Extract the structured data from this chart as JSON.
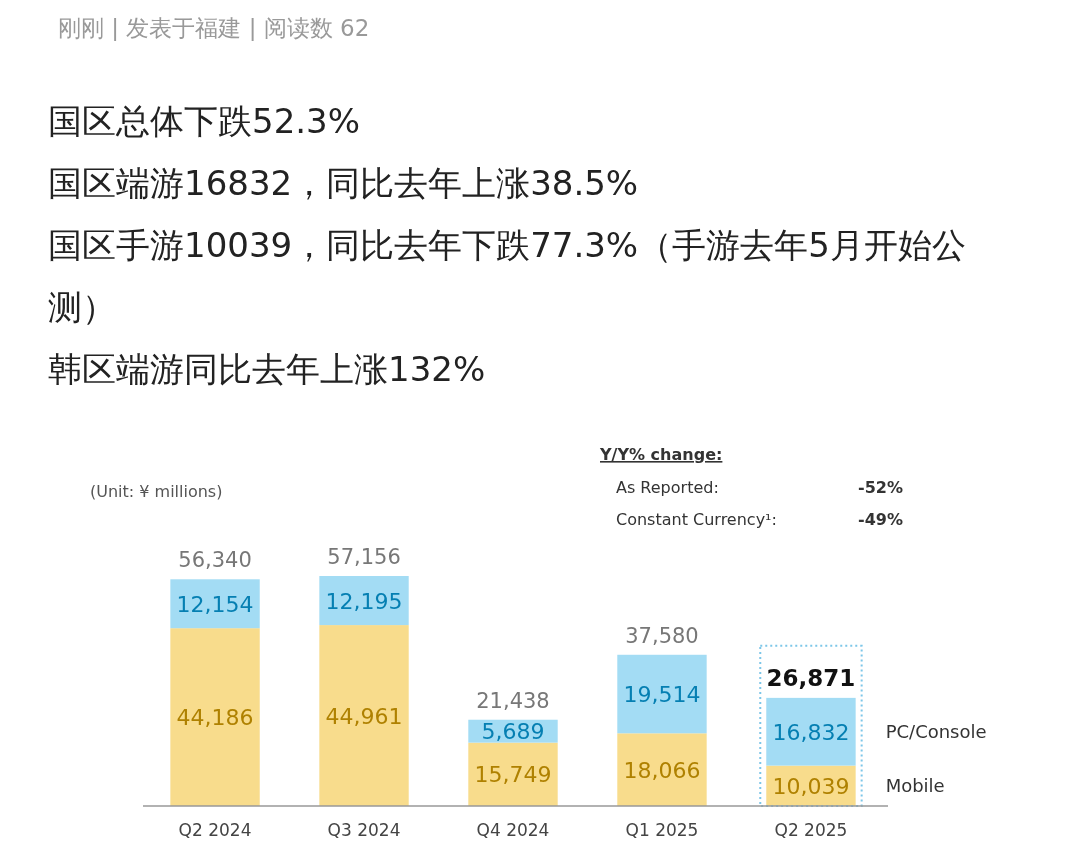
{
  "chart_data": {
    "type": "bar",
    "title": "国区总体下跌52.3%",
    "ylabel": "(Unit: ¥ millions)",
    "annotations": [
      "刚刚 | 发表于福建 | 阅读数 62",
      "国区端游16832，同比去年上涨38.5%",
      "国区手游10039，同比去年下跌77.3%（手游去年5月开始公测）",
      "韩区端游同比去年上涨132%",
      "Y/Y% change:",
      "As Reported:",
      "-52%",
      "Constant Currency¹:",
      "-49%"
    ],
    "categories": [
      "Q2 2024",
      "Q3 2024",
      "Q4 2024",
      "Q1 2025",
      "Q2 2025"
    ],
    "stacked": true,
    "series": [
      {
        "name": "Mobile",
        "color": "#f8dc8c",
        "values": [
          44186,
          44961,
          15749,
          18066,
          10039
        ],
        "value_labels": [
          "44,186",
          "44,961",
          "15,749",
          "18,066",
          "10,039"
        ]
      },
      {
        "name": "PC/Console",
        "color": "#a3dcf4",
        "values": [
          12154,
          12195,
          5689,
          19514,
          16832
        ],
        "value_labels": [
          "12,154",
          "12,195",
          "5,689",
          "19,514",
          "16,832"
        ]
      }
    ],
    "totals": [
      "56,340",
      "57,156",
      "21,438",
      "37,580",
      "26,871"
    ]
  }
}
